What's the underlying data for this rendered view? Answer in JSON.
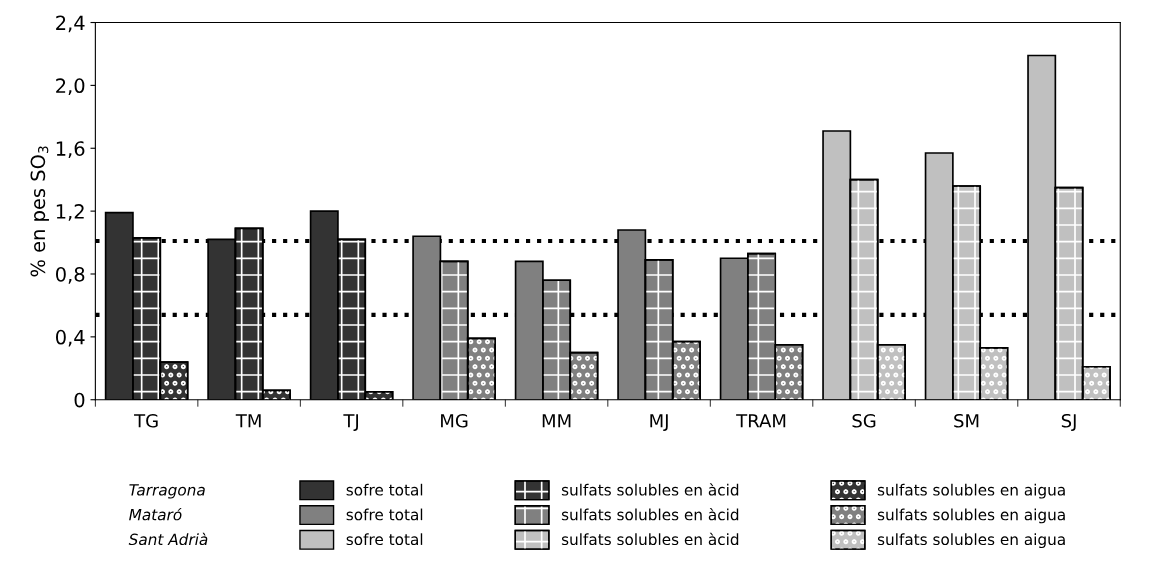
{
  "chart_data": {
    "type": "bar",
    "ylabel": "% en pes SO$_{3}$",
    "categories": [
      "TG",
      "TM",
      "TJ",
      "MG",
      "MM",
      "MJ",
      "TRAM",
      "SG",
      "SM",
      "SJ"
    ],
    "series": [
      {
        "name": "sofre total",
        "colors": [
          "#333333",
          "#333333",
          "#333333",
          "#808080",
          "#808080",
          "#808080",
          "#808080",
          "#c0c0c0",
          "#c0c0c0",
          "#c0c0c0"
        ],
        "values": [
          1.19,
          1.02,
          1.2,
          1.04,
          0.88,
          1.08,
          0.9,
          1.71,
          1.57,
          2.19
        ]
      },
      {
        "name": "sulfats solubles en àcid",
        "colors": [
          "#333333",
          "#333333",
          "#333333",
          "#808080",
          "#808080",
          "#808080",
          "#808080",
          "#c0c0c0",
          "#c0c0c0",
          "#c0c0c0"
        ],
        "values": [
          1.03,
          1.09,
          1.02,
          0.88,
          0.76,
          0.89,
          0.93,
          1.4,
          1.36,
          1.35
        ]
      },
      {
        "name": "sulfats solubles en aigua",
        "colors": [
          "#333333",
          "#333333",
          "#333333",
          "#808080",
          "#808080",
          "#808080",
          "#808080",
          "#c0c0c0",
          "#c0c0c0",
          "#c0c0c0"
        ],
        "values": [
          0.24,
          0.06,
          0.05,
          0.39,
          0.3,
          0.37,
          0.35,
          0.35,
          0.33,
          0.21
        ]
      }
    ],
    "ylim": [
      0,
      2.4
    ],
    "yticks": [
      0,
      {
        "value": 0.4,
        "label": "0,4"
      },
      {
        "value": 0.8,
        "label": "0,8"
      },
      {
        "value": 1.2,
        "label": "1,2"
      },
      {
        "value": 1.6,
        "label": "1,6"
      },
      {
        "value": 2.0,
        "label": "2,0"
      },
      {
        "value": 2.4,
        "label": "2,4"
      }
    ],
    "ref_lines": [
      {
        "axis": "y",
        "value": 1.01,
        "color": "#000000",
        "line_style": "dotted"
      },
      {
        "axis": "y",
        "value": 0.54,
        "color": "#000000",
        "line_style": "dotted"
      }
    ],
    "annotations": [
      "Tarragona",
      "Mataró",
      "Sant Adrià"
    ],
    "legend": "bottom",
    "grid": false
  }
}
